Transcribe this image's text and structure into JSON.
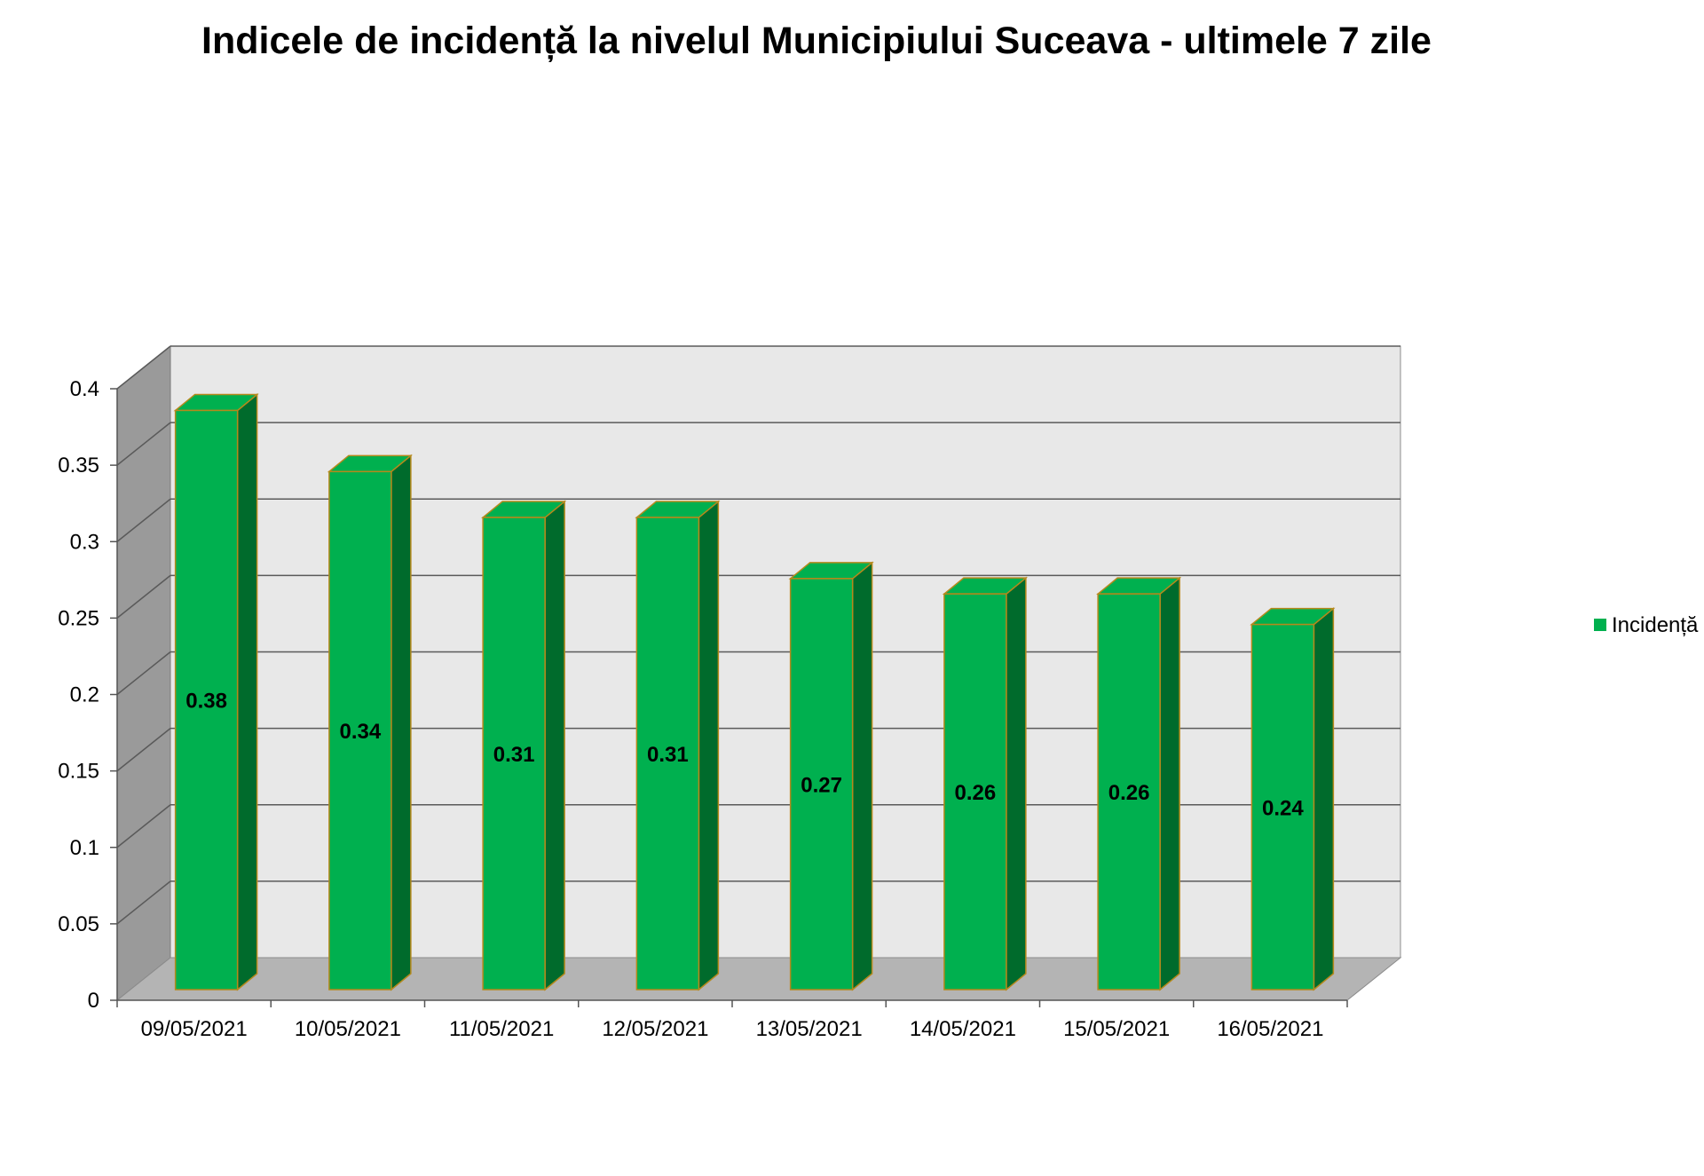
{
  "chart_data": {
    "type": "bar",
    "title": "Indicele de incidență la nivelul Municipiului Suceava - ultimele 7 zile",
    "categories": [
      "09/05/2021",
      "10/05/2021",
      "11/05/2021",
      "12/05/2021",
      "13/05/2021",
      "14/05/2021",
      "15/05/2021",
      "16/05/2021"
    ],
    "series": [
      {
        "name": "Incidență",
        "values": [
          0.38,
          0.34,
          0.31,
          0.31,
          0.27,
          0.26,
          0.26,
          0.24
        ],
        "color": "#00b04f",
        "side_color": "#006b2c",
        "edge_color": "#b5891c"
      }
    ],
    "value_labels": [
      "0.38",
      "0.34",
      "0.31",
      "0.31",
      "0.27",
      "0.26",
      "0.26",
      "0.24"
    ],
    "y_ticks": [
      0,
      0.05,
      0.1,
      0.15,
      0.2,
      0.25,
      0.3,
      0.35,
      0.4
    ],
    "y_tick_labels": [
      "0",
      "0.05",
      "0.1",
      "0.15",
      "0.2",
      "0.25",
      "0.3",
      "0.35",
      "0.4"
    ],
    "ylim": [
      0,
      0.4
    ],
    "xlabel": "",
    "ylabel": "",
    "grid": true,
    "legend_position": "right",
    "style": "3d-column",
    "colors": {
      "wall": "#e8e8e8",
      "side_wall": "#9a9a9a",
      "floor": "#b4b4b4",
      "gridline": "#5a5a5a"
    }
  }
}
